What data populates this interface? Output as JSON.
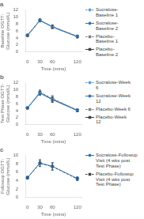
{
  "chart_data": [
    {
      "type": "line",
      "title": "a",
      "xlabel": "Time (mins)",
      "ylabel": "Baseline OGTT- Glucose (mmol/L)",
      "x": [
        0,
        30,
        60,
        120
      ],
      "xlim": [
        -5,
        130
      ],
      "xticks": [
        0,
        30,
        60,
        120
      ],
      "ylim": [
        0,
        12
      ],
      "yticks": [
        0,
        2,
        4,
        6,
        8,
        10,
        12
      ],
      "grid": false,
      "legend": "right",
      "series": [
        {
          "name": "Sucralose-\nBaseline 1",
          "values": [
            4.7,
            9.1,
            7.3,
            4.5
          ],
          "errors": [
            0.2,
            0.4,
            0.5,
            0.3
          ],
          "color": "#5b9bd5",
          "line_style": "dashed",
          "marker": "circle"
        },
        {
          "name": "Sucralose-\nBaseline 2",
          "values": [
            4.8,
            9.0,
            7.2,
            4.4
          ],
          "errors": [
            0.2,
            0.3,
            0.4,
            0.25
          ],
          "color": "#2e75b6",
          "line_style": "solid",
          "marker": "circle"
        },
        {
          "name": "Placebo-\nBaseline 1",
          "values": [
            4.6,
            8.95,
            7.1,
            4.3
          ],
          "errors": [
            0.2,
            0.4,
            0.5,
            0.3
          ],
          "color": "#808080",
          "line_style": "dashed",
          "marker": "square"
        },
        {
          "name": "Placebo-\nBaseline 2",
          "values": [
            4.65,
            9.05,
            7.15,
            4.35
          ],
          "errors": [
            0.2,
            0.35,
            0.45,
            0.28
          ],
          "color": "#404040",
          "line_style": "solid",
          "marker": "square"
        }
      ]
    },
    {
      "type": "line",
      "title": "b",
      "xlabel": "Time (mins)",
      "ylabel": "Test Phase OGTT- Glucose (mmol/L)",
      "x": [
        0,
        30,
        60,
        120
      ],
      "xlim": [
        -5,
        130
      ],
      "xticks": [
        0,
        30,
        60,
        120
      ],
      "ylim": [
        0,
        12
      ],
      "yticks": [
        0,
        2,
        4,
        6,
        8,
        10,
        12
      ],
      "grid": false,
      "legend": "right",
      "series": [
        {
          "name": "Sucralose-Week\n6",
          "values": [
            4.75,
            9.3,
            7.5,
            4.2
          ],
          "errors": [
            0.25,
            0.7,
            0.9,
            0.35
          ],
          "color": "#5b9bd5",
          "line_style": "dashed",
          "marker": "circle"
        },
        {
          "name": "Sucralose-Week\n12",
          "values": [
            4.8,
            9.1,
            7.3,
            4.1
          ],
          "errors": [
            0.2,
            0.5,
            0.7,
            0.3
          ],
          "color": "#2e75b6",
          "line_style": "solid",
          "marker": "circle"
        },
        {
          "name": "Placebo-Week 6",
          "values": [
            4.7,
            9.0,
            7.2,
            4.0
          ],
          "errors": [
            0.25,
            0.65,
            0.85,
            0.35
          ],
          "color": "#808080",
          "line_style": "dashed",
          "marker": "square"
        },
        {
          "name": "Placebo-Week\n12",
          "values": [
            4.75,
            9.05,
            7.15,
            4.05
          ],
          "errors": [
            0.2,
            0.55,
            0.75,
            0.32
          ],
          "color": "#404040",
          "line_style": "solid",
          "marker": "square"
        }
      ]
    },
    {
      "type": "line",
      "title": "c",
      "xlabel": "Time (mins)",
      "ylabel": "Followup OGTT- Glucose (mmol/L)",
      "x": [
        0,
        30,
        60,
        120
      ],
      "xlim": [
        -5,
        130
      ],
      "xticks": [
        0,
        30,
        60,
        120
      ],
      "ylim": [
        0,
        10
      ],
      "yticks": [
        0,
        2,
        4,
        6,
        8,
        10
      ],
      "grid": false,
      "legend": "right",
      "series": [
        {
          "name": "Sucralose-Followup\nVisit (4 wks post\nTest Phase)",
          "values": [
            4.7,
            8.2,
            7.4,
            4.5
          ],
          "errors": [
            0.3,
            0.8,
            0.9,
            0.4
          ],
          "color": "#2e75b6",
          "line_style": "solid",
          "marker": "circle"
        },
        {
          "name": "Placebo-Followup\nVisit (4 wks post\nTest Phase)",
          "values": [
            4.65,
            8.1,
            7.35,
            4.4
          ],
          "errors": [
            0.3,
            0.75,
            0.85,
            0.38
          ],
          "color": "#404040",
          "line_style": "dashed",
          "marker": "square"
        }
      ]
    }
  ]
}
